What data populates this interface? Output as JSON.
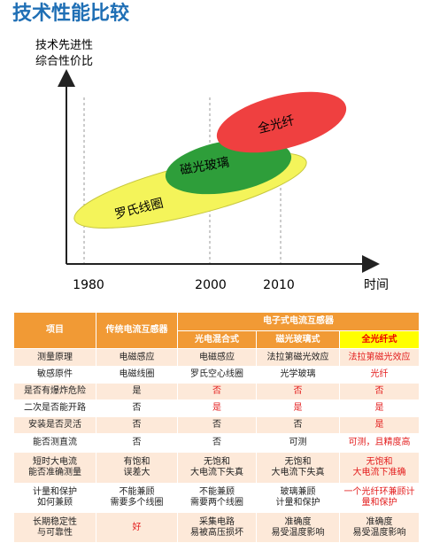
{
  "header": {
    "title": "技术性能比较"
  },
  "diagram": {
    "y_axis_label": [
      "技术先进性",
      "综合性价比"
    ],
    "x_axis_label": "时间",
    "years": [
      "1980",
      "2000",
      "2010"
    ],
    "ellipses": [
      {
        "label": "罗氏线圈"
      },
      {
        "label": "磁光玻璃"
      },
      {
        "label": "全光纤"
      }
    ]
  },
  "table": {
    "header": {
      "item": "项目",
      "traditional": "传统电流互感器",
      "electronic": "电子式电流互感器",
      "sub": [
        "光电混合式",
        "磁光玻璃式",
        "全光纤式"
      ]
    },
    "rows": [
      [
        "测量原理",
        "电磁感应",
        "电磁感应",
        "法拉第磁光效应",
        "法拉第磁光效应"
      ],
      [
        "敏感原件",
        "电磁线圈",
        "罗氏空心线圈",
        "光学玻璃",
        "光纤"
      ],
      [
        "是否有爆炸危险",
        "是",
        "否",
        "否",
        "否"
      ],
      [
        "二次是否能开路",
        "否",
        "是",
        "是",
        "是"
      ],
      [
        "安装是否灵活",
        "否",
        "否",
        "否",
        "是"
      ],
      [
        "能否测直流",
        "否",
        "否",
        "可测",
        "可测，且精度高"
      ],
      [
        "短时大电流\n能否准确测量",
        "有饱和\n误差大",
        "无饱和\n大电流下失真",
        "无饱和\n大电流下失真",
        "无饱和\n大电流下准确"
      ],
      [
        "计量和保护\n如何兼顾",
        "不能兼顾\n需要多个线圈",
        "不能兼顾\n需要两个线圈",
        "玻璃兼顾\n计量和保护",
        "一个光纤环兼顾计\n量和保护"
      ],
      [
        "长期稳定性\n与可靠性",
        "好",
        "采集电路\n易被高压损坏",
        "准确度\n易受温度影响",
        "准确度\n易受温度影响"
      ]
    ]
  }
}
